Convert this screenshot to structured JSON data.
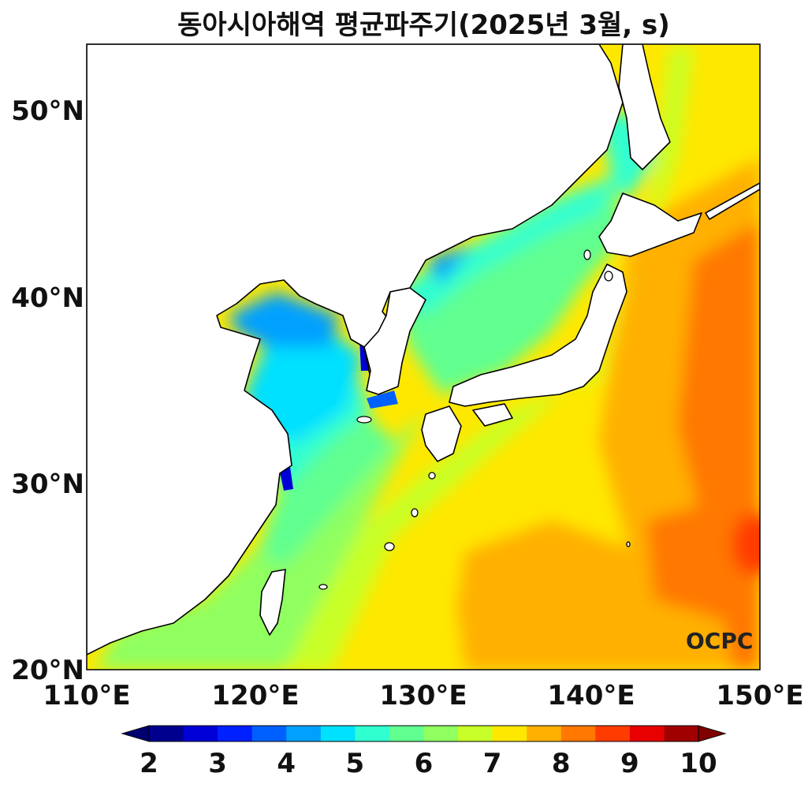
{
  "title": "동아시아해역 평균파주기(2025년 3월, s)",
  "map": {
    "lon_range": [
      110,
      150
    ],
    "lat_range": [
      20,
      53.5
    ],
    "lat_ticks": [
      {
        "value": 50,
        "label": "50°N"
      },
      {
        "value": 40,
        "label": "40°N"
      },
      {
        "value": 30,
        "label": "30°N"
      },
      {
        "value": 20,
        "label": "20°N"
      }
    ],
    "lon_ticks": [
      {
        "value": 110,
        "label": "110°E"
      },
      {
        "value": 120,
        "label": "120°E"
      },
      {
        "value": 130,
        "label": "130°E"
      },
      {
        "value": 140,
        "label": "140°E"
      },
      {
        "value": 150,
        "label": "150°E"
      }
    ],
    "variable": "mean wave period",
    "units": "s"
  },
  "colorbar": {
    "min": 2,
    "max": 10,
    "step": 0.5,
    "extend": "both",
    "tick_labels": [
      "2",
      "3",
      "4",
      "5",
      "6",
      "7",
      "8",
      "9",
      "10"
    ],
    "colors": [
      "#00008f",
      "#0000d6",
      "#0020ff",
      "#0060ff",
      "#00a0ff",
      "#00e0ff",
      "#30ffd0",
      "#60ff90",
      "#90ff60",
      "#c8ff28",
      "#ffe800",
      "#ffb000",
      "#ff7800",
      "#ff3c00",
      "#e80000",
      "#a00000"
    ],
    "under_color": "#000070",
    "over_color": "#800000"
  },
  "logo_text": "OCPC"
}
